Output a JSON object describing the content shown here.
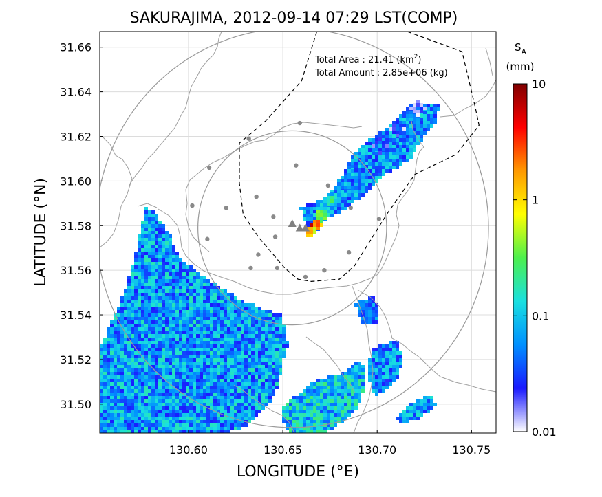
{
  "title": "SAKURAJIMA, 2012-09-14 07:29 LST(COMP)",
  "xlabel": "LONGITUDE (°E)",
  "ylabel": "LATITUDE (°N)",
  "annotation": {
    "area_label": "Total Area   : 21.41 (km",
    "area_sup": "2",
    "area_close": ")",
    "amount_label": "Total Amount : 2.85e+06 (kg)"
  },
  "colorbar": {
    "symbol": "S",
    "subscript": "A",
    "unit": "(mm)",
    "ticks": [
      "10",
      "1",
      "0.1",
      "0.01"
    ],
    "tick_values": [
      10,
      1,
      0.1,
      0.01
    ],
    "scale": "log",
    "colors": [
      "#ffffff",
      "#1a1aff",
      "#0090ff",
      "#19e0e0",
      "#4df04d",
      "#ffff00",
      "#ff9900",
      "#ff0000",
      "#800000"
    ]
  },
  "chart_data": {
    "type": "heatmap",
    "xlim": [
      130.553,
      130.763
    ],
    "ylim": [
      31.487,
      31.667
    ],
    "xticks": [
      130.6,
      130.65,
      130.7,
      130.75
    ],
    "xtick_labels": [
      "130.60",
      "130.65",
      "130.70",
      "130.75"
    ],
    "yticks": [
      31.5,
      31.52,
      31.54,
      31.56,
      31.58,
      31.6,
      31.62,
      31.64,
      31.66
    ],
    "ytick_labels": [
      "31.50",
      "31.52",
      "31.54",
      "31.56",
      "31.58",
      "31.60",
      "31.62",
      "31.64",
      "31.66"
    ],
    "grid": true,
    "vents": [
      [
        130.655,
        31.581
      ],
      [
        130.659,
        31.579
      ],
      [
        130.662,
        31.579
      ]
    ],
    "stations": [
      [
        130.659,
        31.626
      ],
      [
        130.632,
        31.619
      ],
      [
        130.611,
        31.606
      ],
      [
        130.657,
        31.607
      ],
      [
        130.602,
        31.589
      ],
      [
        130.62,
        31.588
      ],
      [
        130.636,
        31.593
      ],
      [
        130.645,
        31.584
      ],
      [
        130.674,
        31.598
      ],
      [
        130.701,
        31.583
      ],
      [
        130.686,
        31.588
      ],
      [
        130.61,
        31.574
      ],
      [
        130.637,
        31.567
      ],
      [
        130.646,
        31.575
      ],
      [
        130.633,
        31.561
      ],
      [
        130.647,
        31.561
      ],
      [
        130.662,
        31.557
      ],
      [
        130.672,
        31.56
      ],
      [
        130.685,
        31.568
      ]
    ],
    "range_rings": [
      {
        "center": [
          130.655,
          31.579
        ],
        "radius_lon": 0.05,
        "radius_lat": 0.0435
      },
      {
        "center": [
          130.655,
          31.579
        ],
        "radius_lon": 0.104,
        "radius_lat": 0.0895
      }
    ],
    "boundary": [
      [
        130.716,
        31.667
      ],
      [
        130.745,
        31.658
      ],
      [
        130.752,
        31.633
      ],
      [
        130.754,
        31.625
      ],
      [
        130.742,
        31.612
      ],
      [
        130.72,
        31.603
      ],
      [
        130.705,
        31.585
      ],
      [
        130.688,
        31.562
      ],
      [
        130.68,
        31.556
      ],
      [
        130.665,
        31.555
      ],
      [
        130.658,
        31.556
      ],
      [
        130.651,
        31.561
      ],
      [
        130.637,
        31.575
      ],
      [
        130.629,
        31.585
      ],
      [
        130.627,
        31.599
      ],
      [
        130.627,
        31.617
      ],
      [
        130.641,
        31.627
      ],
      [
        130.66,
        31.645
      ],
      [
        130.668,
        31.667
      ]
    ],
    "plume": [
      {
        "lon": 130.666,
        "lat": 31.58,
        "value": 6.0
      },
      {
        "lon": 130.668,
        "lat": 31.582,
        "value": 3.0
      },
      {
        "lon": 130.664,
        "lat": 31.578,
        "value": 2.0
      },
      {
        "lon": 130.67,
        "lat": 31.586,
        "value": 0.5
      },
      {
        "lon": 130.675,
        "lat": 31.592,
        "value": 0.2
      },
      {
        "lon": 130.683,
        "lat": 31.6,
        "value": 0.1
      },
      {
        "lon": 130.69,
        "lat": 31.607,
        "value": 0.08
      },
      {
        "lon": 130.7,
        "lat": 31.616,
        "value": 0.06
      },
      {
        "lon": 130.71,
        "lat": 31.624,
        "value": 0.04
      },
      {
        "lon": 130.72,
        "lat": 31.633,
        "value": 0.03
      }
    ]
  }
}
